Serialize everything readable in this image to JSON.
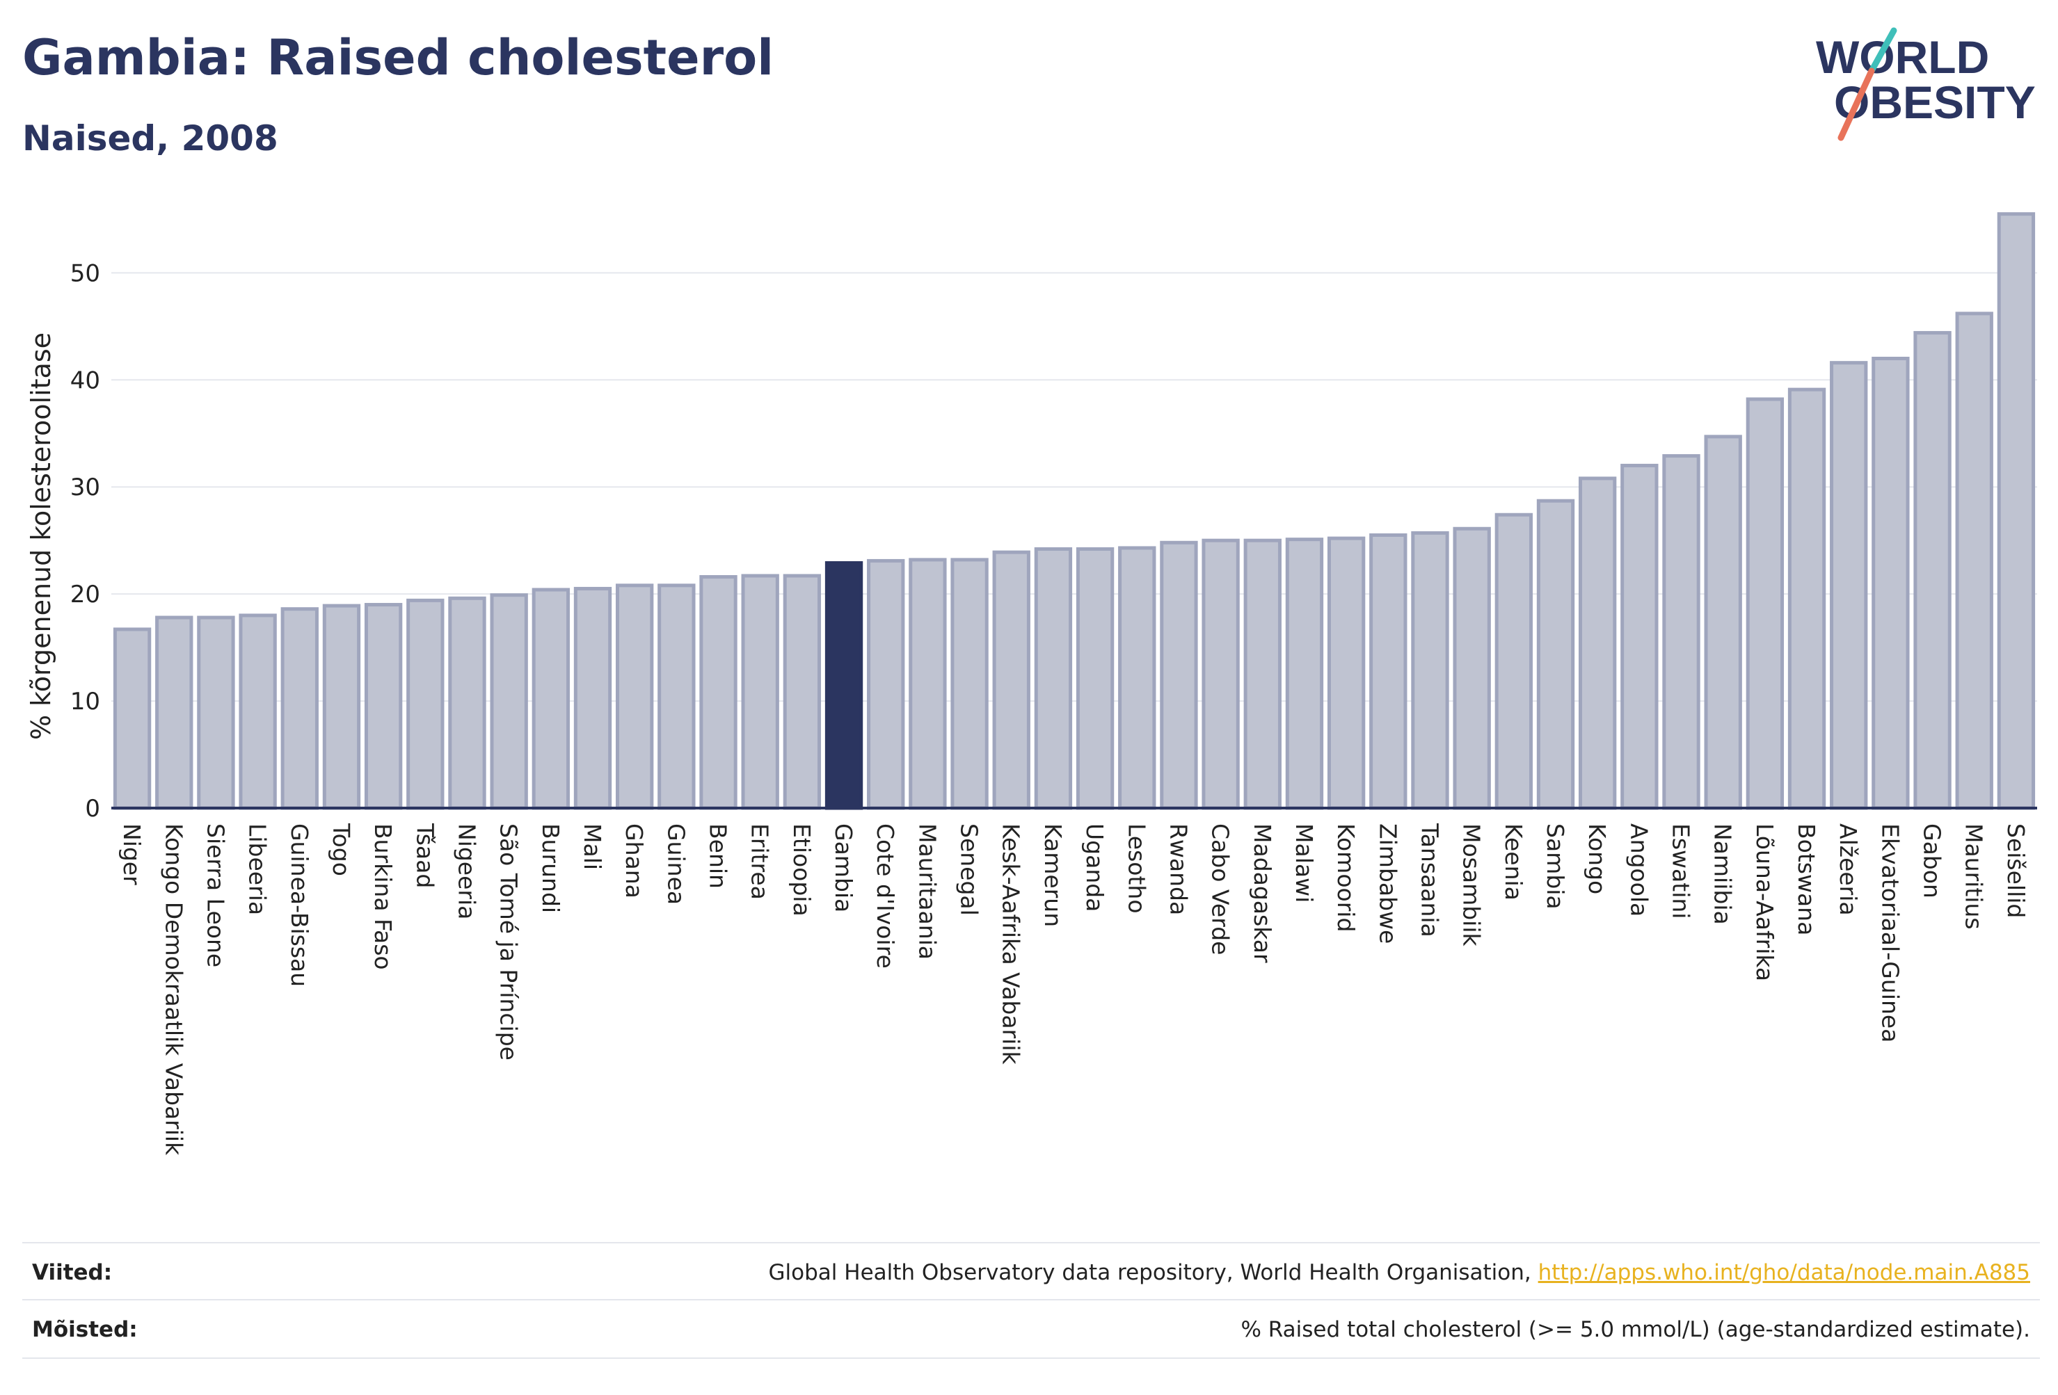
{
  "header": {
    "title": "Gambia: Raised cholesterol",
    "subtitle": "Naised, 2008"
  },
  "logo": {
    "line1": "WORLD",
    "line2": "OBESITY"
  },
  "colors": {
    "bar": "#bfc3d1",
    "bar_border": "#9fa5bd",
    "highlight": "#2b3560",
    "grid": "#e5e7ed",
    "axis": "#2b3560",
    "logo_teal": "#3fbfb9",
    "logo_coral": "#e8735a",
    "link": "#e8b21f"
  },
  "chart_data": {
    "type": "bar",
    "ylabel": "% kõrgenenud kolesteroolitase",
    "xlabel": "",
    "ylim": [
      0,
      56
    ],
    "yticks": [
      0,
      10,
      20,
      30,
      40,
      50
    ],
    "grid": true,
    "highlight": "Gambia",
    "categories": [
      "Niger",
      "Kongo Demokraatlik Vabariik",
      "Sierra Leone",
      "Libeeria",
      "Guinea-Bissau",
      "Togo",
      "Burkina Faso",
      "Tšaad",
      "Nigeeria",
      "São Tomé ja Príncipe",
      "Burundi",
      "Mali",
      "Ghana",
      "Guinea",
      "Benin",
      "Eritrea",
      "Etioopia",
      "Gambia",
      "Cote d'Ivoire",
      "Mauritaania",
      "Senegal",
      "Kesk-Aafrika Vabariik",
      "Kamerun",
      "Uganda",
      "Lesotho",
      "Rwanda",
      "Cabo Verde",
      "Madagaskar",
      "Malawi",
      "Komoorid",
      "Zimbabwe",
      "Tansaania",
      "Mosambiik",
      "Keenia",
      "Sambia",
      "Kongo",
      "Angoola",
      "Eswatini",
      "Namiibia",
      "Lõuna-Aafrika",
      "Botswana",
      "Alžeeria",
      "Ekvatoriaal-Guinea",
      "Gabon",
      "Mauritius",
      "Seišellid"
    ],
    "values": [
      16.7,
      17.8,
      17.8,
      18.0,
      18.6,
      18.9,
      19.0,
      19.4,
      19.6,
      19.9,
      20.4,
      20.5,
      20.8,
      20.8,
      21.6,
      21.7,
      21.7,
      22.9,
      23.1,
      23.2,
      23.2,
      23.9,
      24.2,
      24.2,
      24.3,
      24.8,
      25.0,
      25.0,
      25.1,
      25.2,
      25.5,
      25.7,
      26.1,
      27.4,
      28.7,
      30.8,
      32.0,
      32.9,
      34.7,
      38.2,
      39.1,
      41.6,
      42.0,
      44.4,
      46.2,
      55.5
    ]
  },
  "footer": {
    "sources_label": "Viited:",
    "sources_text": "Global Health Observatory data repository, World Health Organisation,",
    "sources_link": "http://apps.who.int/gho/data/node.main.A885",
    "definitions_label": "Mõisted:",
    "definitions_text": "% Raised total cholesterol (>= 5.0 mmol/L) (age-standardized estimate)."
  }
}
